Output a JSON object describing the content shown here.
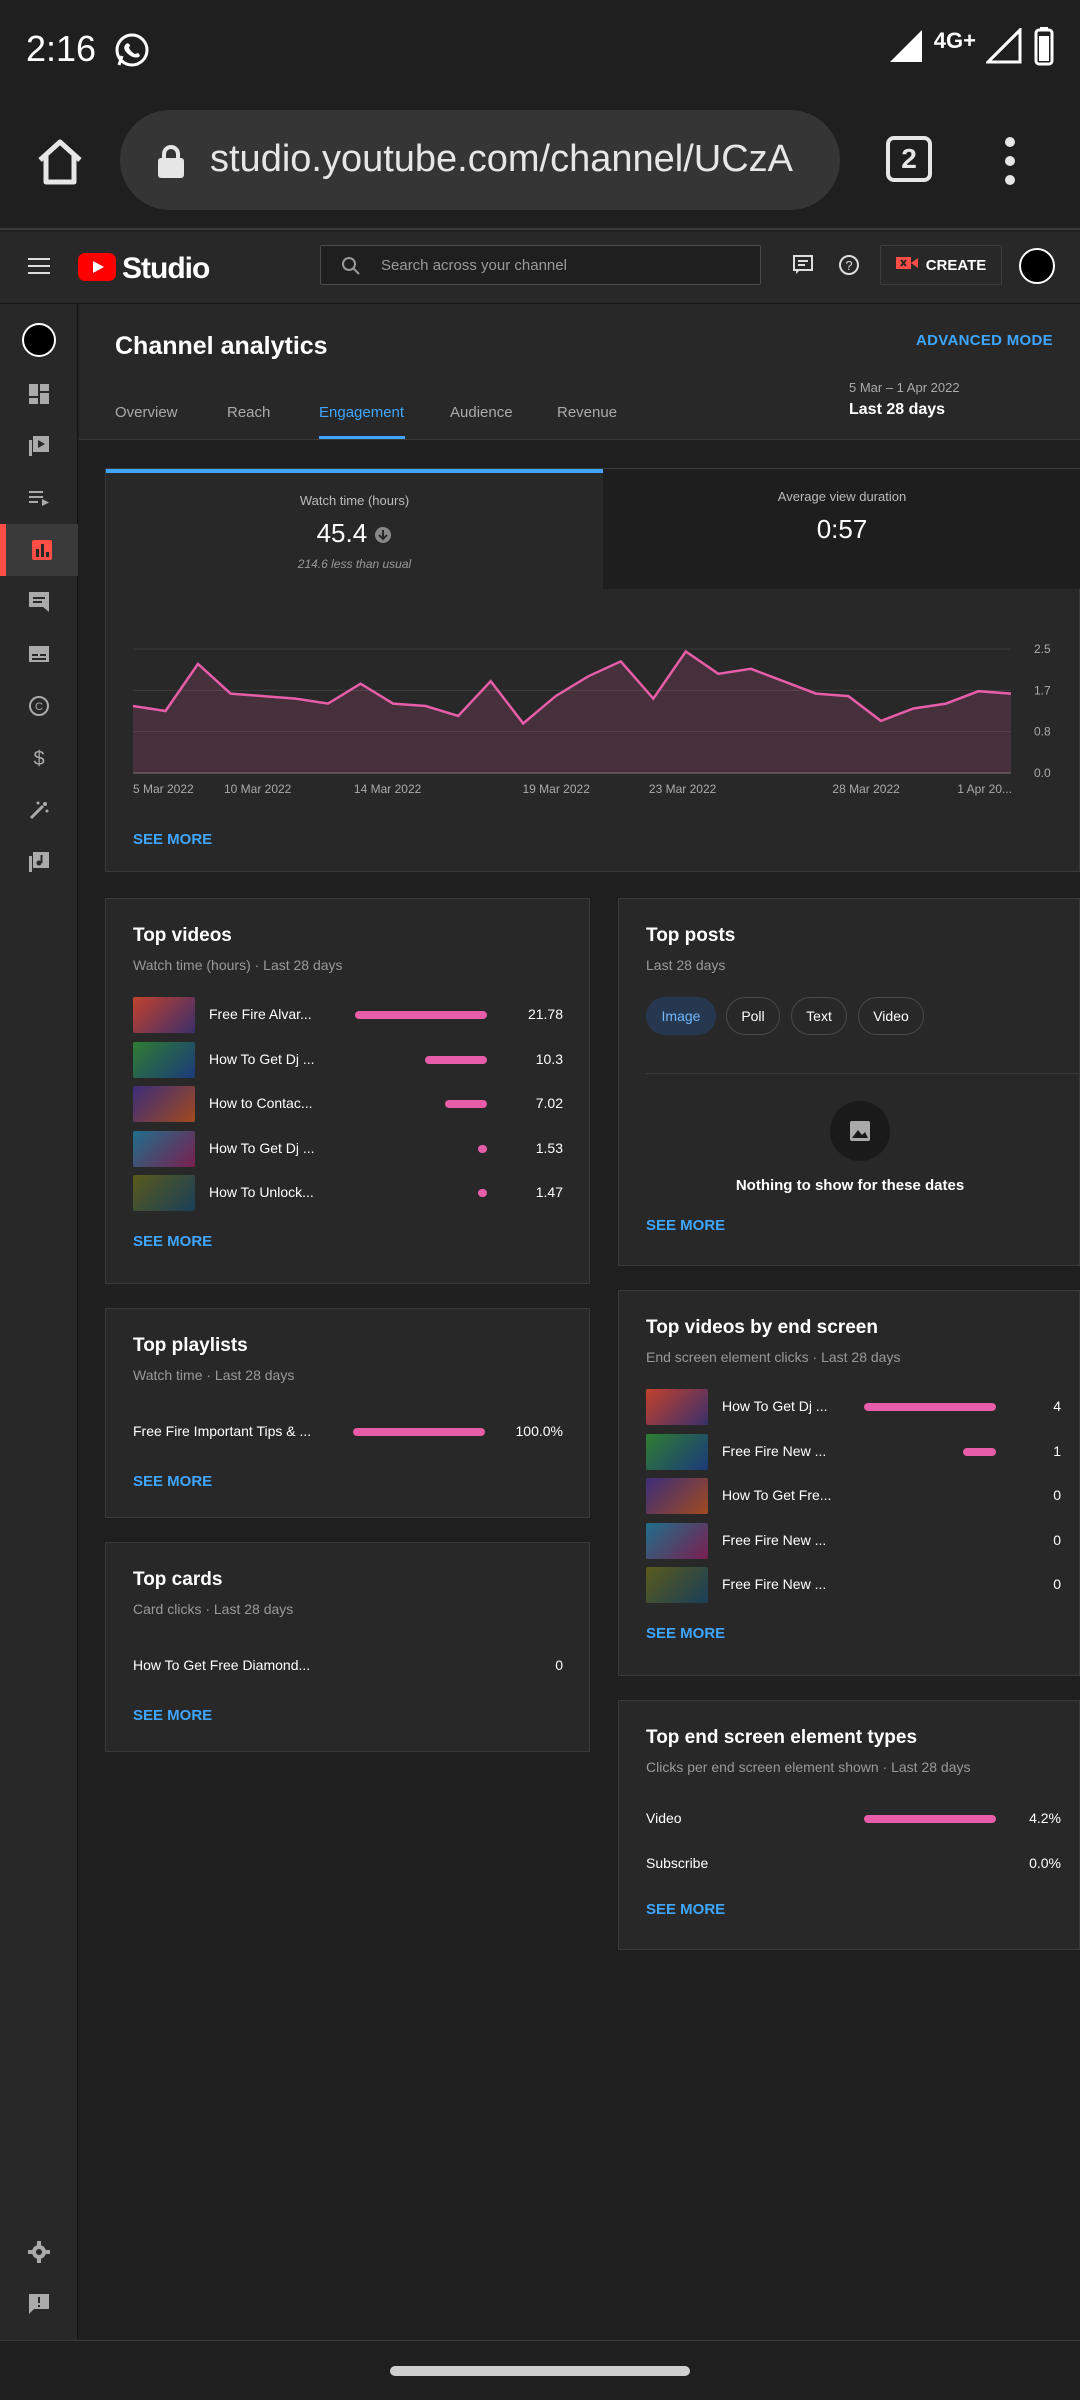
{
  "status_bar": {
    "time": "2:16",
    "network": "4G+"
  },
  "browser": {
    "url": "studio.youtube.com/channel/UCzA",
    "tab_count": "2"
  },
  "studio": {
    "logo_text": "Studio",
    "search_placeholder": "Search across your channel",
    "create_label": "CREATE"
  },
  "page": {
    "title": "Channel analytics",
    "advanced_mode": "ADVANCED MODE",
    "tabs": [
      "Overview",
      "Reach",
      "Engagement",
      "Audience",
      "Revenue"
    ],
    "active_tab": "Engagement",
    "date_range": "5 Mar – 1 Apr 2022",
    "date_label": "Last 28 days"
  },
  "engagement": {
    "metric1": {
      "label": "Watch time (hours)",
      "value": "45.4",
      "sub": "214.6 less than usual"
    },
    "metric2": {
      "label": "Average view duration",
      "value": "0:57"
    },
    "see_more": "SEE MORE"
  },
  "chart_data": {
    "type": "area",
    "x_ticks": [
      "5 Mar 2022",
      "10 Mar 2022",
      "14 Mar 2022",
      "19 Mar 2022",
      "23 Mar 2022",
      "28 Mar 2022",
      "1 Apr 20..."
    ],
    "y_ticks": [
      "2.5",
      "1.7",
      "0.8",
      "0.0"
    ],
    "ylim": [
      0,
      2.5
    ],
    "values": [
      1.35,
      1.25,
      2.2,
      1.6,
      1.55,
      1.5,
      1.4,
      1.8,
      1.4,
      1.35,
      1.15,
      1.85,
      1.0,
      1.55,
      1.95,
      2.25,
      1.5,
      2.45,
      2.0,
      2.1,
      1.85,
      1.6,
      1.55,
      1.05,
      1.3,
      1.4,
      1.65,
      1.6
    ],
    "color": "#e75da9"
  },
  "top_videos": {
    "title": "Top videos",
    "subtitle": "Watch time (hours) · Last 28 days",
    "rows": [
      {
        "label": "Free Fire Alvar...",
        "value": "21.78",
        "ratio": 1.0
      },
      {
        "label": "How To Get Dj ...",
        "value": "10.3",
        "ratio": 0.47
      },
      {
        "label": "How to Contac...",
        "value": "7.02",
        "ratio": 0.32
      },
      {
        "label": "How To Get Dj ...",
        "value": "1.53",
        "ratio": 0.07
      },
      {
        "label": "How To Unlock...",
        "value": "1.47",
        "ratio": 0.07
      }
    ],
    "see_more": "SEE MORE"
  },
  "top_playlists": {
    "title": "Top playlists",
    "subtitle": "Watch time · Last 28 days",
    "rows": [
      {
        "label": "Free Fire Important Tips & ...",
        "value": "100.0%",
        "ratio": 1.0
      }
    ],
    "see_more": "SEE MORE"
  },
  "top_cards": {
    "title": "Top cards",
    "subtitle": "Card clicks · Last 28 days",
    "rows": [
      {
        "label": "How To Get Free Diamond...",
        "value": "0"
      }
    ],
    "see_more": "SEE MORE"
  },
  "top_posts": {
    "title": "Top posts",
    "subtitle": "Last 28 days",
    "chips": [
      "Image",
      "Poll",
      "Text",
      "Video"
    ],
    "empty_text": "Nothing to show for these dates",
    "see_more": "SEE MORE"
  },
  "top_end_screen_videos": {
    "title": "Top videos by end screen",
    "subtitle": "End screen element clicks · Last 28 days",
    "rows": [
      {
        "label": "How To Get Dj ...",
        "value": "4",
        "ratio": 1.0
      },
      {
        "label": "Free Fire New ...",
        "value": "1",
        "ratio": 0.25
      },
      {
        "label": "How To Get Fre...",
        "value": "0",
        "ratio": 0
      },
      {
        "label": "Free Fire New ...",
        "value": "0",
        "ratio": 0
      },
      {
        "label": "Free Fire New ...",
        "value": "0",
        "ratio": 0
      }
    ],
    "see_more": "SEE MORE"
  },
  "top_end_screen_types": {
    "title": "Top end screen element types",
    "subtitle": "Clicks per end screen element shown · Last 28 days",
    "rows": [
      {
        "label": "Video",
        "value": "4.2%",
        "ratio": 1.0
      },
      {
        "label": "Subscribe",
        "value": "0.0%",
        "ratio": 0
      }
    ],
    "see_more": "SEE MORE"
  }
}
